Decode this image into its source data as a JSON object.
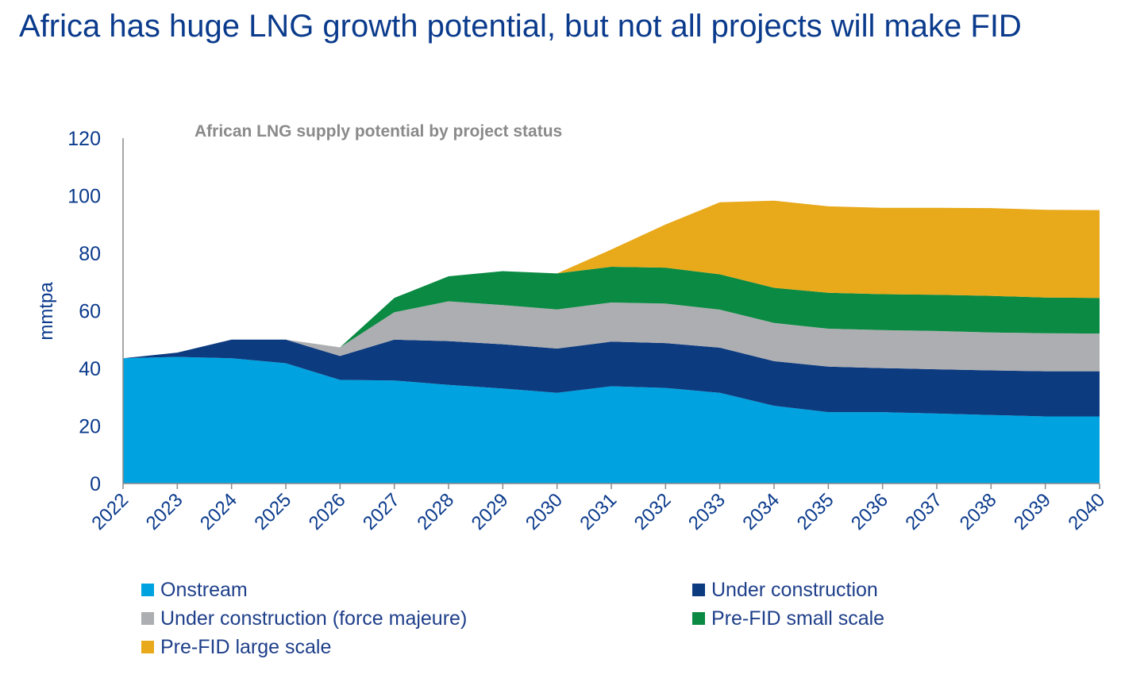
{
  "headline": "Africa has huge LNG growth potential, but not all projects will make FID",
  "colors": {
    "onstream": "#00a3e0",
    "under_construction": "#0d3b80",
    "force_majeure": "#adaeb1",
    "prefid_small": "#0a8a42",
    "prefid_large": "#e8a91a",
    "title_text": "#0b3b8c",
    "subtitle_text": "#8a8a8a"
  },
  "chart_data": {
    "type": "area",
    "stacked": true,
    "title": "African  LNG supply  potential by project status",
    "xlabel": "",
    "ylabel": "mmtpa",
    "ylim": [
      0,
      120
    ],
    "yticks": [
      0,
      20,
      40,
      60,
      80,
      100,
      120
    ],
    "grid": false,
    "legend_position": "bottom",
    "x": [
      "2022",
      "2023",
      "2024",
      "2025",
      "2026",
      "2027",
      "2028",
      "2029",
      "2030",
      "2031",
      "2032",
      "2033",
      "2034",
      "2035",
      "2036",
      "2037",
      "2038",
      "2039",
      "2040"
    ],
    "series": [
      {
        "name": "Onstream",
        "color": "#00a3e0",
        "values": [
          43.5,
          44,
          43.5,
          41.8,
          36,
          35.8,
          34.3,
          33,
          31.5,
          33.8,
          33.2,
          31.5,
          27,
          24.8,
          24.8,
          24.3,
          23.8,
          23.3,
          23.3
        ]
      },
      {
        "name": "Under construction",
        "color": "#0d3b80",
        "values": [
          0,
          1.5,
          6.5,
          8.2,
          8.3,
          14.2,
          15.2,
          15.4,
          15.4,
          15.5,
          15.6,
          15.7,
          15.5,
          15.8,
          15.3,
          15.4,
          15.5,
          15.7,
          15.7
        ]
      },
      {
        "name": "Under construction (force majeure)",
        "color": "#adaeb1",
        "values": [
          0,
          0,
          0,
          0,
          3,
          9.5,
          13.8,
          13.6,
          13.6,
          13.6,
          13.7,
          13.2,
          13.3,
          13.2,
          13.2,
          13.3,
          13.2,
          13.2,
          13.1
        ]
      },
      {
        "name": "Pre-FID small scale",
        "color": "#0a8a42",
        "values": [
          0,
          0,
          0,
          0,
          0,
          5,
          8.7,
          11.8,
          12.5,
          12.4,
          12.5,
          12.3,
          12.2,
          12.5,
          12.5,
          12.6,
          12.7,
          12.4,
          12.4
        ]
      },
      {
        "name": "Pre-FID large scale",
        "color": "#e8a91a",
        "values": [
          0,
          0,
          0,
          0,
          0,
          0,
          0,
          0,
          0,
          6,
          15,
          25,
          30.3,
          30,
          30,
          30.2,
          30.5,
          30.5,
          30.5
        ]
      }
    ]
  },
  "legend": [
    {
      "label": "Onstream",
      "color": "#00a3e0"
    },
    {
      "label": "Under construction",
      "color": "#0d3b80"
    },
    {
      "label": "Under construction (force majeure)",
      "color": "#adaeb1"
    },
    {
      "label": "Pre-FID small scale",
      "color": "#0a8a42"
    },
    {
      "label": "Pre-FID large scale",
      "color": "#e8a91a"
    }
  ]
}
